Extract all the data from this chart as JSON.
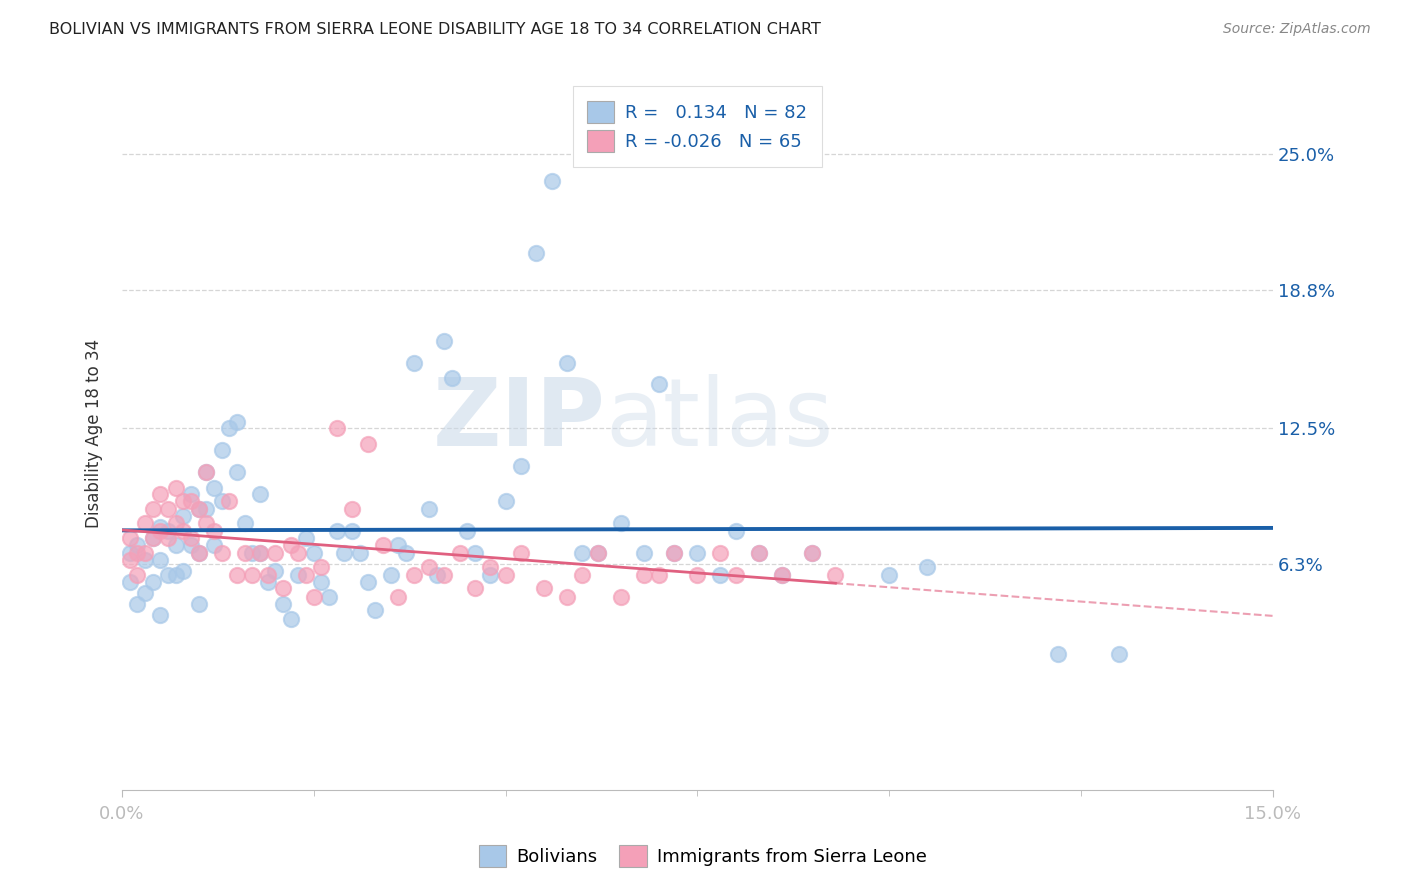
{
  "title": "BOLIVIAN VS IMMIGRANTS FROM SIERRA LEONE DISABILITY AGE 18 TO 34 CORRELATION CHART",
  "source": "Source: ZipAtlas.com",
  "ylabel": "Disability Age 18 to 34",
  "ytick_labels": [
    "25.0%",
    "18.8%",
    "12.5%",
    "6.3%"
  ],
  "ytick_values": [
    0.25,
    0.188,
    0.125,
    0.063
  ],
  "xlim": [
    0.0,
    0.15
  ],
  "ylim": [
    -0.04,
    0.285
  ],
  "r_bolivian": 0.134,
  "n_bolivian": 82,
  "r_sierraleone": -0.026,
  "n_sierraleone": 65,
  "color_bolivian": "#a8c8e8",
  "color_sierraleone": "#f4a0b8",
  "line_color_bolivian": "#1a5fa8",
  "line_color_sierraleone": "#e06080",
  "background_color": "#ffffff",
  "grid_color": "#cccccc",
  "bolivian_x": [
    0.001,
    0.001,
    0.002,
    0.002,
    0.003,
    0.003,
    0.004,
    0.004,
    0.005,
    0.005,
    0.005,
    0.006,
    0.006,
    0.007,
    0.007,
    0.008,
    0.008,
    0.009,
    0.009,
    0.01,
    0.01,
    0.01,
    0.011,
    0.011,
    0.012,
    0.012,
    0.013,
    0.013,
    0.014,
    0.015,
    0.015,
    0.016,
    0.017,
    0.018,
    0.018,
    0.019,
    0.02,
    0.021,
    0.022,
    0.023,
    0.024,
    0.025,
    0.026,
    0.027,
    0.028,
    0.029,
    0.03,
    0.031,
    0.032,
    0.033,
    0.035,
    0.036,
    0.037,
    0.038,
    0.04,
    0.041,
    0.042,
    0.043,
    0.045,
    0.046,
    0.048,
    0.05,
    0.052,
    0.054,
    0.056,
    0.058,
    0.06,
    0.062,
    0.065,
    0.068,
    0.07,
    0.072,
    0.075,
    0.078,
    0.08,
    0.083,
    0.086,
    0.09,
    0.1,
    0.105,
    0.122,
    0.13
  ],
  "bolivian_y": [
    0.068,
    0.055,
    0.072,
    0.045,
    0.065,
    0.05,
    0.075,
    0.055,
    0.08,
    0.065,
    0.04,
    0.078,
    0.058,
    0.072,
    0.058,
    0.085,
    0.06,
    0.095,
    0.072,
    0.088,
    0.068,
    0.045,
    0.105,
    0.088,
    0.098,
    0.072,
    0.115,
    0.092,
    0.125,
    0.128,
    0.105,
    0.082,
    0.068,
    0.095,
    0.068,
    0.055,
    0.06,
    0.045,
    0.038,
    0.058,
    0.075,
    0.068,
    0.055,
    0.048,
    0.078,
    0.068,
    0.078,
    0.068,
    0.055,
    0.042,
    0.058,
    0.072,
    0.068,
    0.155,
    0.088,
    0.058,
    0.165,
    0.148,
    0.078,
    0.068,
    0.058,
    0.092,
    0.108,
    0.205,
    0.238,
    0.155,
    0.068,
    0.068,
    0.082,
    0.068,
    0.145,
    0.068,
    0.068,
    0.058,
    0.078,
    0.068,
    0.058,
    0.068,
    0.058,
    0.062,
    0.022,
    0.022
  ],
  "sierraleone_x": [
    0.001,
    0.001,
    0.002,
    0.002,
    0.003,
    0.003,
    0.004,
    0.004,
    0.005,
    0.005,
    0.006,
    0.006,
    0.007,
    0.007,
    0.008,
    0.008,
    0.009,
    0.009,
    0.01,
    0.01,
    0.011,
    0.011,
    0.012,
    0.013,
    0.014,
    0.015,
    0.016,
    0.017,
    0.018,
    0.019,
    0.02,
    0.021,
    0.022,
    0.023,
    0.024,
    0.025,
    0.026,
    0.028,
    0.03,
    0.032,
    0.034,
    0.036,
    0.038,
    0.04,
    0.042,
    0.044,
    0.046,
    0.048,
    0.05,
    0.052,
    0.055,
    0.058,
    0.06,
    0.062,
    0.065,
    0.068,
    0.07,
    0.072,
    0.075,
    0.078,
    0.08,
    0.083,
    0.086,
    0.09,
    0.093
  ],
  "sierraleone_y": [
    0.075,
    0.065,
    0.068,
    0.058,
    0.082,
    0.068,
    0.088,
    0.075,
    0.095,
    0.078,
    0.088,
    0.075,
    0.098,
    0.082,
    0.078,
    0.092,
    0.075,
    0.092,
    0.088,
    0.068,
    0.105,
    0.082,
    0.078,
    0.068,
    0.092,
    0.058,
    0.068,
    0.058,
    0.068,
    0.058,
    0.068,
    0.052,
    0.072,
    0.068,
    0.058,
    0.048,
    0.062,
    0.125,
    0.088,
    0.118,
    0.072,
    0.048,
    0.058,
    0.062,
    0.058,
    0.068,
    0.052,
    0.062,
    0.058,
    0.068,
    0.052,
    0.048,
    0.058,
    0.068,
    0.048,
    0.058,
    0.058,
    0.068,
    0.058,
    0.068,
    0.058,
    0.068,
    0.058,
    0.068,
    0.058
  ],
  "watermark_zip": "ZIP",
  "watermark_atlas": "atlas"
}
